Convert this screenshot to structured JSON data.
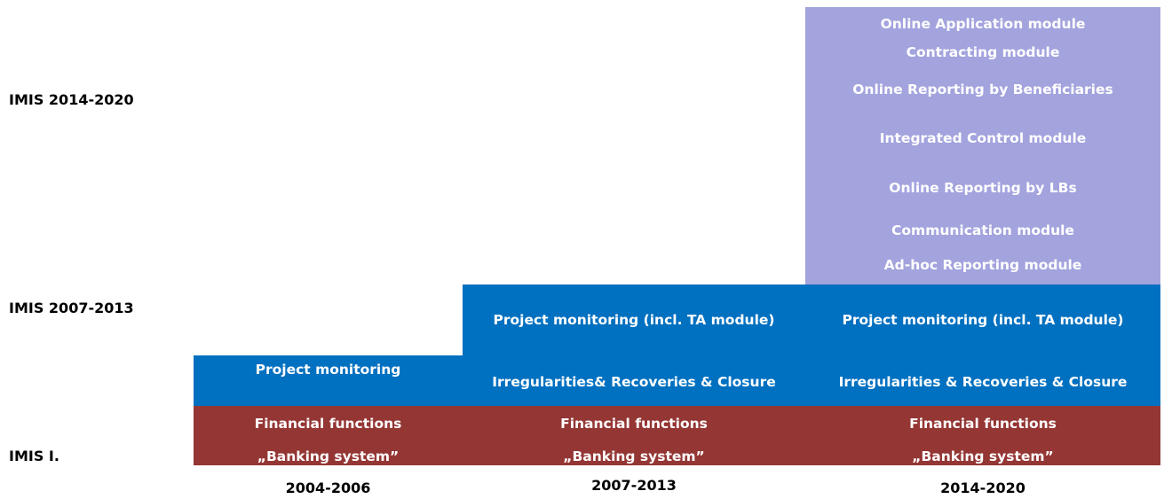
{
  "row_labels": [
    "IMIS 2014-2020",
    "IMIS 2007-2013",
    "IMIS I."
  ],
  "columns": [
    {
      "period": "2004-2006",
      "financial": [
        "Financial functions",
        "„Banking system”"
      ],
      "monitoring": [
        "Project monitoring"
      ],
      "modules": []
    },
    {
      "period": "2007-2013",
      "financial": [
        "Financial functions",
        "„Banking system”"
      ],
      "monitoring": [
        "Project monitoring (incl. TA module)",
        "Irregularities& Recoveries & Closure"
      ],
      "modules": []
    },
    {
      "period": "2014-2020",
      "financial": [
        "Financial functions",
        "„Banking system”"
      ],
      "monitoring": [
        "Project monitoring (incl. TA module)",
        "Irregularities & Recoveries & Closure"
      ],
      "modules": [
        "Online Application module",
        "Contracting module",
        "Online Reporting by Beneficiaries",
        "Integrated Control module",
        "Online Reporting by LBs",
        "Communication module",
        "Ad-hoc Reporting module"
      ]
    }
  ]
}
